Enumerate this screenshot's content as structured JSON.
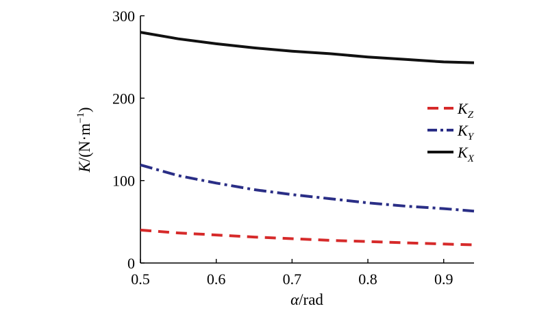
{
  "chart_data": {
    "type": "line",
    "title": "",
    "xlabel": {
      "var": "α",
      "unit": "/rad"
    },
    "ylabel": {
      "var": "K",
      "unit_pre": "/(N·m",
      "exp": "−1",
      "unit_post": ")"
    },
    "xlim": [
      0.5,
      0.94
    ],
    "ylim": [
      0,
      300
    ],
    "xticks": [
      0.5,
      0.6,
      0.7,
      0.8,
      0.9
    ],
    "xtick_labels": [
      "0.5",
      "0.6",
      "0.7",
      "0.8",
      "0.9"
    ],
    "yticks": [
      0,
      100,
      200,
      300
    ],
    "ytick_labels": [
      "0",
      "100",
      "200",
      "300"
    ],
    "grid": false,
    "legend_position": "right",
    "x": [
      0.5,
      0.55,
      0.6,
      0.65,
      0.7,
      0.75,
      0.8,
      0.85,
      0.9,
      0.94
    ],
    "series": [
      {
        "name": "Z",
        "color": "#d62a2a",
        "style": "dashed",
        "values": [
          40,
          36.5,
          34,
          31.5,
          29.5,
          27.5,
          26,
          24.5,
          23,
          22
        ]
      },
      {
        "name": "Y",
        "color": "#2a2e86",
        "style": "dashdot",
        "values": [
          119,
          106,
          97,
          89,
          83,
          78,
          73,
          69,
          66,
          63
        ]
      },
      {
        "name": "X",
        "color": "#111111",
        "style": "solid",
        "values": [
          280,
          272,
          266,
          261,
          257,
          254,
          250,
          247,
          244,
          243
        ]
      }
    ]
  }
}
